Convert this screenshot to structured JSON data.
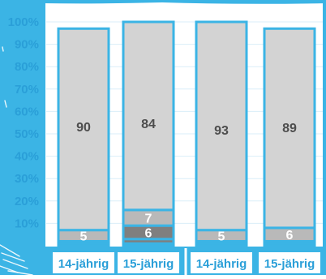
{
  "colors": {
    "frame": "#3bb4e5",
    "plot_bg": "#ffffff",
    "grid": "#d9eef8",
    "y_tick_text": "#2a9fd8",
    "x_label_text": "#2a9fd8",
    "bar_fill": "#d3d3d3",
    "bar_fill_mid": "#b9b9b9",
    "bar_fill_dark": "#7f7f7f",
    "bar_fill_darkest": "#3f3f3f",
    "value_text_on_light": "#4d4d4d",
    "value_text_on_dark": "#ffffff"
  },
  "chart_data": {
    "type": "bar",
    "stacked": true,
    "orientation": "vertical",
    "categories": [
      "14-jährig",
      "15-jährig",
      "14-jährig",
      "15-jährig"
    ],
    "y_ticks": [
      "10%",
      "20%",
      "30%",
      "40%",
      "50%",
      "60%",
      "70%",
      "80%",
      "90%",
      "100%"
    ],
    "ylim": [
      0,
      100
    ],
    "grid": true,
    "legend": "none",
    "series": [
      {
        "values": [
          1,
          1,
          1,
          1
        ],
        "labels": [
          "",
          "",
          "",
          ""
        ],
        "color_key": "bar_fill_darkest"
      },
      {
        "values": [
          1,
          2,
          1,
          1
        ],
        "labels": [
          "",
          "",
          "",
          ""
        ],
        "color_key": "bar_fill_dark"
      },
      {
        "values": [
          0,
          6,
          0,
          0
        ],
        "labels": [
          "",
          "6",
          "",
          ""
        ],
        "color_key": "bar_fill_dark"
      },
      {
        "values": [
          5,
          7,
          5,
          6
        ],
        "labels": [
          "5",
          "7",
          "5",
          "6"
        ],
        "color_key": "bar_fill_mid"
      },
      {
        "values": [
          90,
          84,
          93,
          89
        ],
        "labels": [
          "90",
          "84",
          "93",
          "89"
        ],
        "color_key": "bar_fill"
      }
    ]
  }
}
